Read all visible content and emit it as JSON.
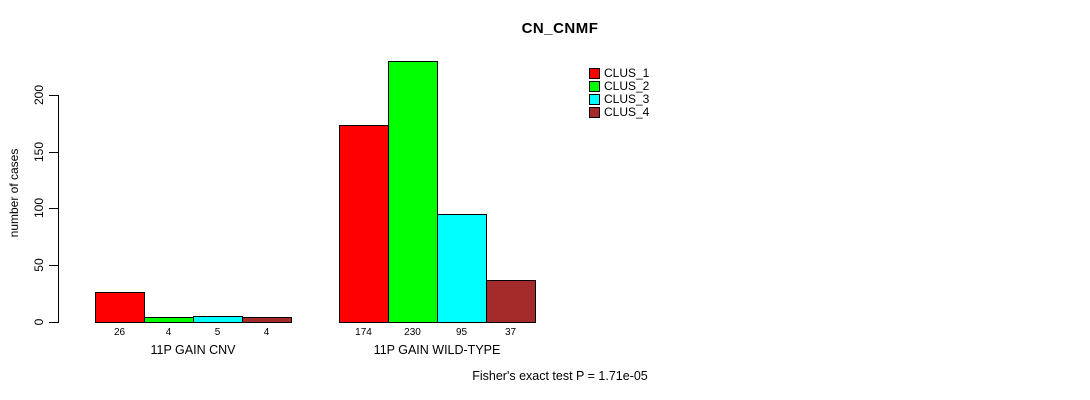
{
  "title": "CN_CNMF",
  "footer": "Fisher's exact test P = 1.71e-05",
  "chart_data": {
    "type": "bar",
    "title": "CN_CNMF",
    "xlabel": "",
    "ylabel": "number of cases",
    "yticks": [
      0,
      50,
      100,
      150,
      200
    ],
    "ylim": [
      0,
      235
    ],
    "grid": false,
    "legend_position": "top-right",
    "legend": [
      "CLUS_1",
      "CLUS_2",
      "CLUS_3",
      "CLUS_4"
    ],
    "series_colors": [
      "#ff0000",
      "#00ff00",
      "#00ffff",
      "#a52a2a"
    ],
    "categories": [
      "11P GAIN CNV",
      "11P GAIN WILD-TYPE"
    ],
    "series": [
      {
        "name": "CLUS_1",
        "values": [
          26,
          174
        ]
      },
      {
        "name": "CLUS_2",
        "values": [
          4,
          230
        ]
      },
      {
        "name": "CLUS_3",
        "values": [
          5,
          95
        ]
      },
      {
        "name": "CLUS_4",
        "values": [
          4,
          37
        ]
      }
    ],
    "bar_value_labels": [
      [
        "26",
        "4",
        "5",
        "4"
      ],
      [
        "174",
        "230",
        "95",
        "37"
      ]
    ],
    "annotation": "Fisher's exact test P = 1.71e-05"
  }
}
